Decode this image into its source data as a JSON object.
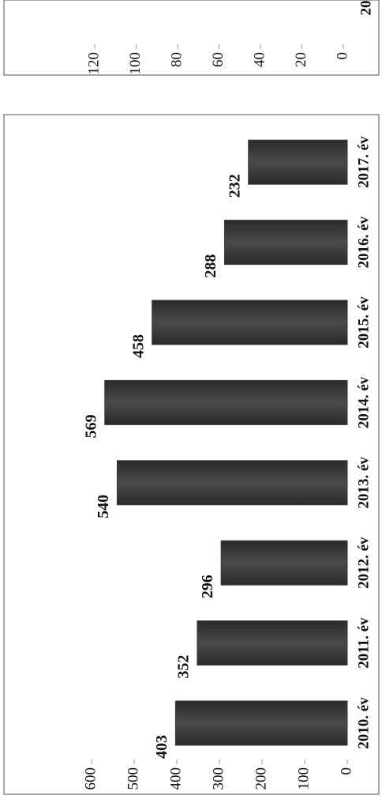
{
  "chart_data": [
    {
      "type": "bar",
      "categories": [
        "2010. év",
        "2011. év",
        "2012. év",
        "2013. év",
        "2014. év",
        "2015. év",
        "2016. év",
        "2017. év"
      ],
      "values": [
        403,
        352,
        296,
        540,
        569,
        458,
        288,
        232
      ],
      "color": "#3a3a3a",
      "ylim": [
        0,
        600
      ],
      "yticks": [
        0,
        100,
        200,
        300,
        400,
        500,
        600
      ]
    },
    {
      "type": "bar",
      "categories": [
        "20"
      ],
      "values": [
        null
      ],
      "color": "#3a3a3a",
      "ylim": [
        0,
        120
      ],
      "yticks": [
        0,
        20,
        40,
        60,
        80,
        100,
        120
      ]
    }
  ]
}
